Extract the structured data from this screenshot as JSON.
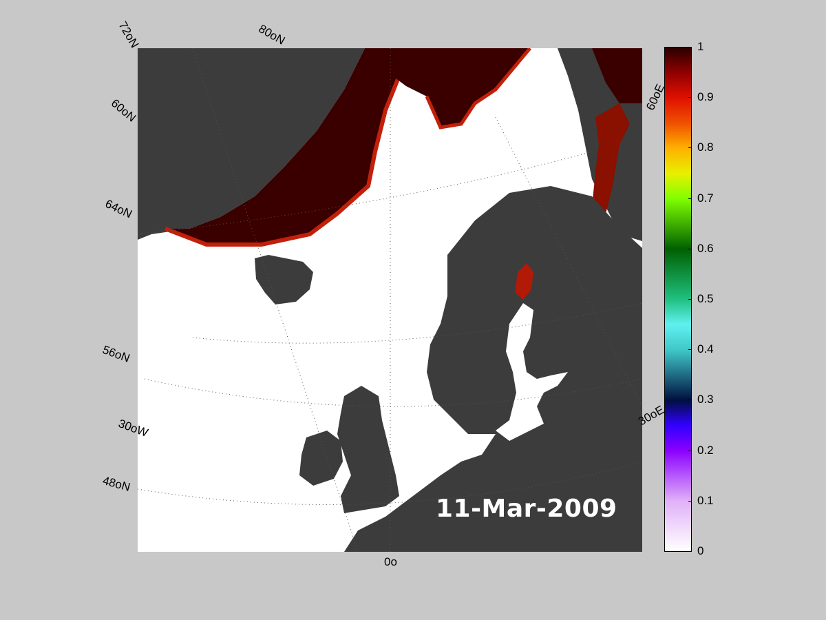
{
  "date_label": "11-Mar-2009",
  "map": {
    "latitude_labels": [
      "72oN",
      "80oN",
      "60oN",
      "64oN",
      "56oN",
      "48oN"
    ],
    "longitude_labels": [
      "30oW",
      "0o",
      "30oE",
      "60oE"
    ],
    "colors": {
      "land": "#3c3c3c",
      "land_alt": "#8a8a8a",
      "ocean_open": "#ffffff",
      "ice_dense": "#3a0000",
      "ice_edge": "#c2200a"
    }
  },
  "colorbar": {
    "ticks": [
      "1",
      "0.9",
      "0.8",
      "0.7",
      "0.6",
      "0.5",
      "0.4",
      "0.3",
      "0.2",
      "0.1",
      "0"
    ],
    "min": 0,
    "max": 1
  }
}
